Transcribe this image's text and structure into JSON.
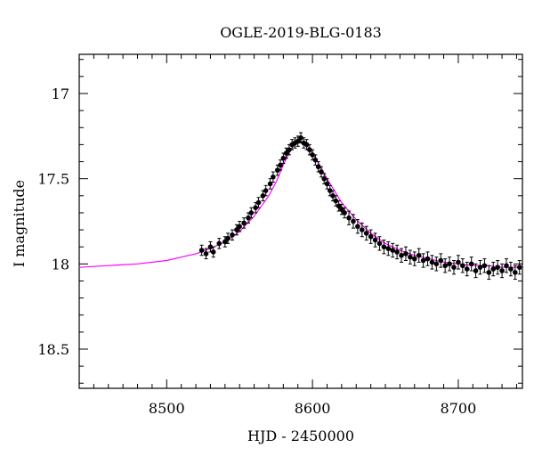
{
  "chart_data": {
    "type": "scatter",
    "title": "OGLE-2019-BLG-0183",
    "xlabel": "HJD - 2450000",
    "ylabel": "I magnitude",
    "xlim": [
      8440,
      8744
    ],
    "ylim": [
      18.73,
      16.77
    ],
    "y_inverted": true,
    "xticks": [
      8500,
      8600,
      8700
    ],
    "yticks": [
      17,
      17.5,
      18,
      18.5
    ],
    "xtick_labels": [
      "8500",
      "8600",
      "8700"
    ],
    "ytick_labels": [
      "17",
      "17.5",
      "18",
      "18.5"
    ],
    "grid": false,
    "series": [
      {
        "kind": "points_with_errorbars",
        "color": "#000000",
        "x": [
          8524,
          8527,
          8530,
          8532,
          8536,
          8540,
          8542,
          8545,
          8548,
          8550,
          8553,
          8556,
          8558,
          8561,
          8563,
          8566,
          8568,
          8571,
          8573,
          8576,
          8578,
          8580,
          8582,
          8584,
          8586,
          8588,
          8590,
          8592,
          8594,
          8596,
          8598,
          8600,
          8602,
          8604,
          8606,
          8608,
          8610,
          8612,
          8614,
          8616,
          8618,
          8620,
          8622,
          8625,
          8628,
          8631,
          8634,
          8637,
          8640,
          8643,
          8646,
          8649,
          8652,
          8655,
          8658,
          8661,
          8664,
          8667,
          8670,
          8673,
          8676,
          8679,
          8682,
          8685,
          8688,
          8691,
          8694,
          8697,
          8700,
          8703,
          8706,
          8709,
          8712,
          8715,
          8718,
          8721,
          8724,
          8727,
          8730,
          8733,
          8736,
          8739,
          8742
        ],
        "y": [
          17.92,
          17.94,
          17.9,
          17.93,
          17.88,
          17.87,
          17.85,
          17.83,
          17.8,
          17.78,
          17.76,
          17.73,
          17.7,
          17.67,
          17.64,
          17.6,
          17.57,
          17.53,
          17.49,
          17.45,
          17.42,
          17.38,
          17.35,
          17.33,
          17.3,
          17.29,
          17.28,
          17.26,
          17.29,
          17.3,
          17.33,
          17.36,
          17.39,
          17.43,
          17.46,
          17.5,
          17.53,
          17.57,
          17.6,
          17.63,
          17.66,
          17.68,
          17.7,
          17.73,
          17.75,
          17.78,
          17.8,
          17.82,
          17.84,
          17.86,
          17.88,
          17.9,
          17.91,
          17.92,
          17.93,
          17.95,
          17.94,
          17.96,
          17.97,
          17.95,
          17.98,
          17.97,
          17.99,
          18.0,
          17.98,
          18.01,
          18.0,
          18.02,
          17.99,
          18.01,
          18.03,
          18.0,
          18.04,
          18.02,
          18.01,
          18.05,
          18.03,
          18.02,
          18.04,
          18.01,
          18.03,
          18.05,
          18.02
        ],
        "yerr": [
          0.03,
          0.03,
          0.03,
          0.03,
          0.03,
          0.03,
          0.03,
          0.03,
          0.03,
          0.03,
          0.03,
          0.03,
          0.03,
          0.03,
          0.03,
          0.03,
          0.03,
          0.03,
          0.03,
          0.03,
          0.03,
          0.03,
          0.03,
          0.03,
          0.03,
          0.03,
          0.03,
          0.03,
          0.03,
          0.03,
          0.03,
          0.03,
          0.03,
          0.03,
          0.03,
          0.03,
          0.03,
          0.03,
          0.03,
          0.03,
          0.03,
          0.03,
          0.03,
          0.04,
          0.04,
          0.04,
          0.04,
          0.04,
          0.04,
          0.04,
          0.04,
          0.04,
          0.04,
          0.04,
          0.04,
          0.04,
          0.04,
          0.04,
          0.04,
          0.04,
          0.04,
          0.04,
          0.04,
          0.04,
          0.04,
          0.04,
          0.04,
          0.04,
          0.04,
          0.04,
          0.04,
          0.04,
          0.04,
          0.04,
          0.04,
          0.04,
          0.04,
          0.04,
          0.04,
          0.04,
          0.04,
          0.04,
          0.04
        ]
      },
      {
        "kind": "model_line",
        "color": "#ff00ff",
        "x": [
          8440,
          8460,
          8480,
          8500,
          8510,
          8520,
          8530,
          8540,
          8550,
          8560,
          8570,
          8575,
          8580,
          8585,
          8590,
          8595,
          8600,
          8605,
          8610,
          8615,
          8620,
          8630,
          8640,
          8650,
          8660,
          8670,
          8680,
          8690,
          8700,
          8710,
          8720,
          8730,
          8744
        ],
        "y": [
          18.02,
          18.01,
          18.0,
          17.98,
          17.96,
          17.94,
          17.91,
          17.87,
          17.81,
          17.72,
          17.6,
          17.52,
          17.42,
          17.33,
          17.28,
          17.29,
          17.35,
          17.42,
          17.5,
          17.57,
          17.64,
          17.74,
          17.82,
          17.88,
          17.92,
          17.95,
          17.97,
          17.99,
          18.0,
          18.01,
          18.01,
          18.02,
          18.02
        ]
      }
    ]
  }
}
